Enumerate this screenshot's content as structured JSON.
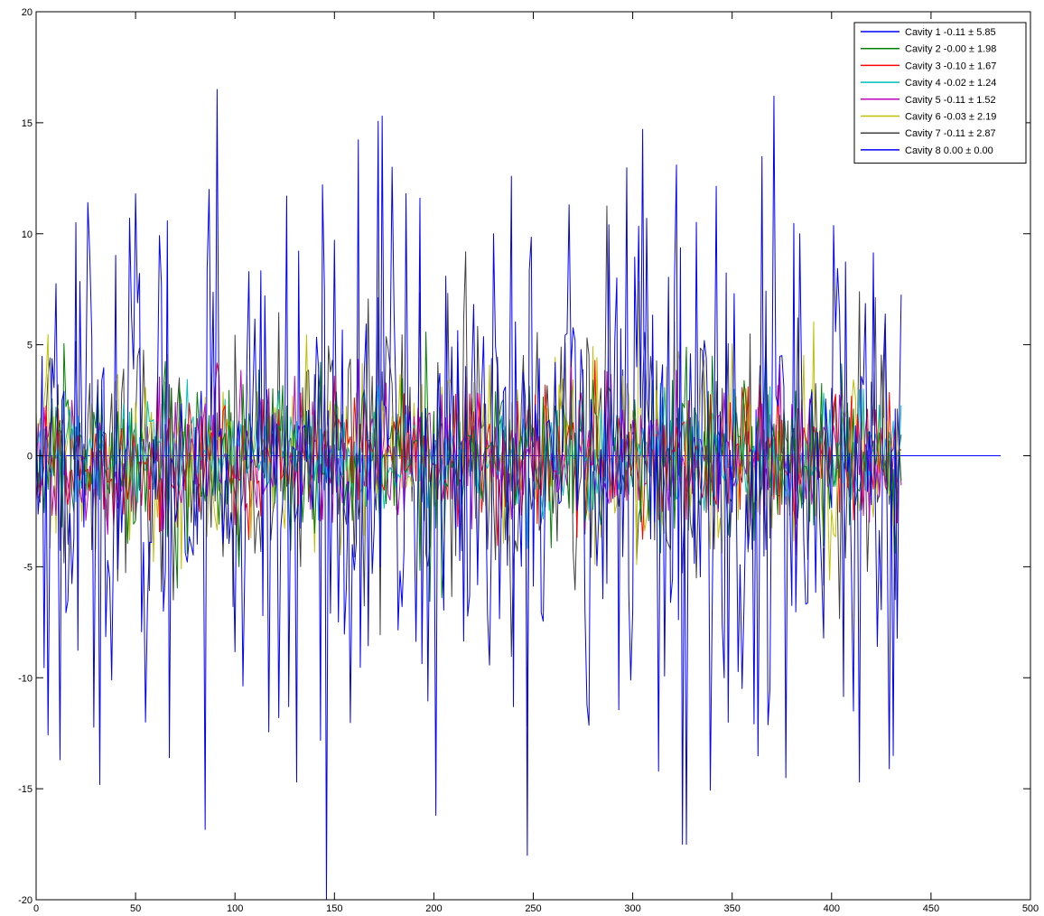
{
  "chart_data": {
    "type": "line",
    "title": "",
    "xlabel": "",
    "ylabel": "",
    "xlim": [
      0,
      500
    ],
    "ylim": [
      -20,
      20
    ],
    "x_ticks": [
      0,
      50,
      100,
      150,
      200,
      250,
      300,
      350,
      400,
      450,
      500
    ],
    "y_ticks": [
      -20,
      -15,
      -10,
      -5,
      0,
      5,
      10,
      15,
      20
    ],
    "x_tick_labels": [
      "0",
      "50",
      "100",
      "150",
      "200",
      "250",
      "300",
      "350",
      "400",
      "450",
      "500"
    ],
    "y_tick_labels": [
      "-20",
      "-15",
      "-10",
      "-5",
      "0",
      "5",
      "10",
      "15",
      "20"
    ],
    "grid": false,
    "legend_position": "top-right",
    "n_points": 436,
    "series": [
      {
        "name": "Cavity 1 -0.11 ± 5.85",
        "color": "#0000ff",
        "mean": -0.11,
        "std": 5.85,
        "x_range": [
          0,
          436
        ],
        "peaks": [
          [
            91,
            16.5
          ],
          [
            371,
            16.2
          ],
          [
            174,
            15.3
          ],
          [
            305,
            14.7
          ],
          [
            201,
            13.9
          ],
          [
            322,
            13.1
          ],
          [
            179,
            13
          ],
          [
            12,
            11.8
          ],
          [
            50,
            11.8
          ],
          [
            87,
            12
          ],
          [
            126,
            11.7
          ],
          [
            193,
            11.6
          ],
          [
            268,
            11.3
          ],
          [
            47,
            10.7
          ],
          [
            20,
            10.5
          ],
          [
            384,
            10
          ]
        ],
        "troughs": [
          [
            325,
            -17.5
          ],
          [
            327,
            -17.5
          ],
          [
            201,
            -16.2
          ],
          [
            131,
            -14.7
          ],
          [
            414,
            -14.7
          ],
          [
            377,
            -14.5
          ],
          [
            313,
            -14.2
          ],
          [
            429,
            -14.1
          ],
          [
            12,
            -13.7
          ],
          [
            67,
            -13.6
          ],
          [
            55,
            -12
          ],
          [
            122,
            -11.8
          ],
          [
            411,
            -11.5
          ],
          [
            127,
            -11.3
          ],
          [
            240,
            -11.3
          ],
          [
            369,
            -10.5
          ]
        ]
      },
      {
        "name": "Cavity 2 -0.00 ± 1.98",
        "color": "#008000",
        "mean": 0.0,
        "std": 1.98,
        "x_range": [
          0,
          436
        ]
      },
      {
        "name": "Cavity 3 -0.10 ± 1.67",
        "color": "#ff0000",
        "mean": -0.1,
        "std": 1.67,
        "x_range": [
          0,
          436
        ]
      },
      {
        "name": "Cavity 4 -0.02 ± 1.24",
        "color": "#00bfbf",
        "mean": -0.02,
        "std": 1.24,
        "x_range": [
          0,
          436
        ]
      },
      {
        "name": "Cavity 5 -0.11 ± 1.52",
        "color": "#bf00bf",
        "mean": -0.11,
        "std": 1.52,
        "x_range": [
          0,
          436
        ]
      },
      {
        "name": "Cavity 6 -0.03 ± 2.19",
        "color": "#bfbf00",
        "mean": -0.03,
        "std": 2.19,
        "x_range": [
          0,
          436
        ]
      },
      {
        "name": "Cavity 7 -0.11 ± 2.87",
        "color": "#404040",
        "mean": -0.11,
        "std": 2.87,
        "x_range": [
          0,
          436
        ]
      },
      {
        "name": "Cavity 8 0.00 ± 0.00",
        "color": "#0000ff",
        "mean": 0.0,
        "std": 0.0,
        "x_range": [
          0,
          485
        ]
      }
    ]
  }
}
